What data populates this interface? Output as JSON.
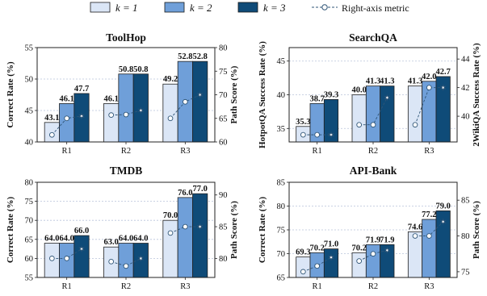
{
  "colors": {
    "k1": "#dbe6f6",
    "k2": "#6f9fd9",
    "k3": "#0f4b78",
    "metric": "#2f5577"
  },
  "legend": {
    "items": [
      {
        "key": "k1",
        "label": "k = 1"
      },
      {
        "key": "k2",
        "label": "k = 2"
      },
      {
        "key": "k3",
        "label": "k = 3"
      }
    ],
    "metric_label": "Right-axis metric"
  },
  "chart_data": [
    {
      "type": "bar",
      "title": "ToolHop",
      "categories": [
        "R1",
        "R2",
        "R3"
      ],
      "ylabel": "Correct Rate (%)",
      "ylim": [
        40,
        55
      ],
      "yticks": [
        40,
        45,
        50,
        55
      ],
      "y2label": "Path Score (%)",
      "y2lim": [
        60,
        80
      ],
      "y2ticks": [
        60,
        65,
        70,
        75,
        80
      ],
      "series": [
        {
          "name": "k = 1",
          "values": [
            43.1,
            46.1,
            49.2
          ]
        },
        {
          "name": "k = 2",
          "values": [
            46.1,
            50.8,
            52.8
          ]
        },
        {
          "name": "k = 3",
          "values": [
            47.7,
            50.8,
            52.8
          ]
        }
      ],
      "value_labels": [
        [
          "43.1",
          "46.1",
          "49.2"
        ],
        [
          "46.1",
          "50.8",
          "52.8"
        ],
        [
          "47.7",
          "50.8",
          "52.8"
        ]
      ],
      "metric": [
        [
          61.5,
          65.0,
          65.5
        ],
        [
          65.7,
          65.8,
          66.7
        ],
        [
          65.0,
          68.5,
          70.0
        ]
      ],
      "grid": true
    },
    {
      "type": "bar",
      "title": "SearchQA",
      "categories": [
        "R1",
        "R2",
        "R3"
      ],
      "ylabel": "HotpotQA Success Rate (%)",
      "ylim": [
        33,
        47
      ],
      "yticks": [
        35,
        40,
        45
      ],
      "y2label": "2WikiQA Success Rate (%)",
      "y2lim": [
        38.2,
        44.8
      ],
      "y2ticks": [
        40,
        42,
        44
      ],
      "series": [
        {
          "name": "k = 1",
          "values": [
            35.3,
            40.0,
            41.3
          ]
        },
        {
          "name": "k = 2",
          "values": [
            38.7,
            41.3,
            42.0
          ]
        },
        {
          "name": "k = 3",
          "values": [
            39.3,
            41.3,
            42.7
          ]
        }
      ],
      "value_labels": [
        [
          "35.3",
          "40.0",
          "41.3"
        ],
        [
          "38.7",
          "41.3",
          "42.0"
        ],
        [
          "39.3",
          "41.3",
          "42.7"
        ]
      ],
      "metric": [
        [
          38.7,
          38.7,
          38.7
        ],
        [
          39.4,
          39.4,
          41.3
        ],
        [
          39.4,
          42.0,
          42.0
        ]
      ],
      "grid": true
    },
    {
      "type": "bar",
      "title": "TMDB",
      "categories": [
        "R1",
        "R2",
        "R3"
      ],
      "ylabel": "Correct Rate (%)",
      "ylim": [
        55,
        80
      ],
      "yticks": [
        55,
        60,
        65,
        70,
        75,
        80
      ],
      "y2label": "Path Score (%)",
      "y2lim": [
        77,
        92
      ],
      "y2ticks": [
        80,
        85,
        90
      ],
      "series": [
        {
          "name": "k = 1",
          "values": [
            64.0,
            63.0,
            70.0
          ]
        },
        {
          "name": "k = 2",
          "values": [
            64.0,
            64.0,
            76.0
          ]
        },
        {
          "name": "k = 3",
          "values": [
            66.0,
            64.0,
            77.0
          ]
        }
      ],
      "value_labels": [
        [
          "64.0",
          "63.0",
          "70.0"
        ],
        [
          "64.0",
          "64.0",
          "76.0"
        ],
        [
          "66.0",
          "64.0",
          "77.0"
        ]
      ],
      "metric": [
        [
          80.0,
          80.0,
          81.5
        ],
        [
          79.5,
          78.8,
          80.0
        ],
        [
          84.0,
          85.0,
          85.0
        ]
      ],
      "grid": true
    },
    {
      "type": "bar",
      "title": "API-Bank",
      "categories": [
        "R1",
        "R2",
        "R3"
      ],
      "ylabel": "Correct Rate (%)",
      "ylim": [
        65,
        85
      ],
      "yticks": [
        65,
        70,
        75,
        80,
        85
      ],
      "y2label": "Path Score (%)",
      "y2lim": [
        74.2,
        87.5
      ],
      "y2ticks": [
        75,
        80,
        85
      ],
      "series": [
        {
          "name": "k = 1",
          "values": [
            69.3,
            70.2,
            74.6
          ]
        },
        {
          "name": "k = 2",
          "values": [
            70.2,
            71.9,
            77.2
          ]
        },
        {
          "name": "k = 3",
          "values": [
            71.0,
            71.9,
            79.0
          ]
        }
      ],
      "value_labels": [
        [
          "69.3",
          "70.2",
          "74.6"
        ],
        [
          "70.2",
          "71.9",
          "77.2"
        ],
        [
          "71.0",
          "71.9",
          "79.0"
        ]
      ],
      "metric": [
        [
          75.0,
          75.8,
          77.0
        ],
        [
          76.5,
          77.5,
          78.0
        ],
        [
          80.0,
          80.0,
          82.0
        ]
      ],
      "grid": true
    }
  ]
}
